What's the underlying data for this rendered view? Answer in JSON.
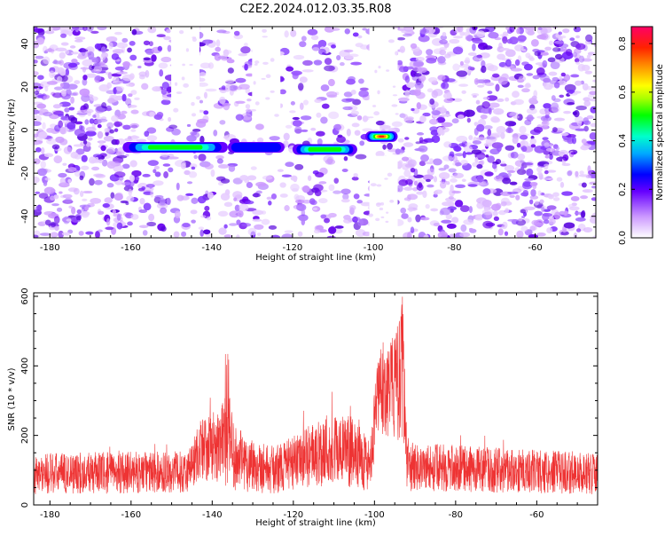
{
  "figure_title": "C2E2.2024.012.03.35.R08",
  "chart_data": [
    {
      "type": "heatmap",
      "xlabel": "Height of straight line (km)",
      "ylabel": "Frequency (Hz)",
      "xlim": [
        -184,
        -45
      ],
      "ylim": [
        -50,
        48
      ],
      "xticks": [
        -180,
        -160,
        -140,
        -120,
        -100,
        -80,
        -60
      ],
      "yticks": [
        -40,
        -20,
        0,
        20,
        40
      ],
      "colorbar": {
        "label": "Normalized spectral amplitude",
        "range": [
          0,
          0.87
        ],
        "ticks": [
          0.0,
          0.2,
          0.4,
          0.6,
          0.8
        ]
      },
      "features": [
        {
          "x_range": [
            -162,
            -136
          ],
          "freq": -8,
          "peak_amplitude": 0.55
        },
        {
          "x_range": [
            -136,
            -122
          ],
          "freq": -8,
          "peak_amplitude": 0.3
        },
        {
          "x_range": [
            -120,
            -104
          ],
          "freq": -9,
          "peak_amplitude": 0.6
        },
        {
          "x_range": [
            -102,
            -94
          ],
          "freq": -3,
          "peak_amplitude": 0.85
        }
      ],
      "blank_regions": [
        {
          "x_range": [
            -150,
            -143
          ],
          "freq_range": [
            5,
            48
          ]
        },
        {
          "x_range": [
            -130,
            -123
          ],
          "freq_range": [
            5,
            48
          ]
        },
        {
          "x_range": [
            -101,
            -94
          ],
          "freq_range": [
            5,
            48
          ]
        },
        {
          "x_range": [
            -101,
            -94
          ],
          "freq_range": [
            -50,
            -12
          ]
        }
      ]
    },
    {
      "type": "line",
      "xlabel": "Height of straight line (km)",
      "ylabel": "SNR (10 * v/v)",
      "xlim": [
        -184,
        -45
      ],
      "ylim": [
        0,
        610
      ],
      "xticks": [
        -180,
        -160,
        -140,
        -120,
        -100,
        -80,
        -60
      ],
      "yticks": [
        0,
        200,
        400,
        600
      ],
      "series_color": "#ee3333",
      "envelope": [
        {
          "x": -184,
          "mean": 90,
          "amp": 60
        },
        {
          "x": -146,
          "mean": 95,
          "amp": 60
        },
        {
          "x": -143,
          "mean": 160,
          "amp": 90
        },
        {
          "x": -138,
          "mean": 170,
          "amp": 110
        },
        {
          "x": -136,
          "mean": 190,
          "amp": 140
        },
        {
          "x": -134,
          "mean": 130,
          "amp": 90
        },
        {
          "x": -125,
          "mean": 100,
          "amp": 70
        },
        {
          "x": -118,
          "mean": 130,
          "amp": 80
        },
        {
          "x": -112,
          "mean": 160,
          "amp": 110
        },
        {
          "x": -104,
          "mean": 150,
          "amp": 100
        },
        {
          "x": -101,
          "mean": 110,
          "amp": 80
        },
        {
          "x": -99,
          "mean": 330,
          "amp": 130
        },
        {
          "x": -95,
          "mean": 340,
          "amp": 150
        },
        {
          "x": -93,
          "mean": 380,
          "amp": 200
        },
        {
          "x": -92,
          "mean": 110,
          "amp": 70
        },
        {
          "x": -45,
          "mean": 90,
          "amp": 60
        }
      ]
    }
  ]
}
